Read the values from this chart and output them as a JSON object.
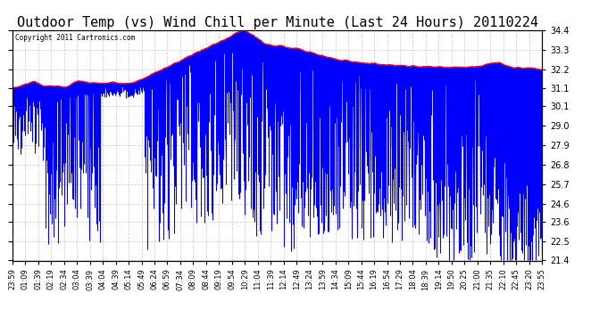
{
  "title": "Outdoor Temp (vs) Wind Chill per Minute (Last 24 Hours) 20110224",
  "copyright": "Copyright 2011 Cartronics.com",
  "ylim": [
    21.4,
    34.4
  ],
  "yticks": [
    21.4,
    22.5,
    23.6,
    24.6,
    25.7,
    26.8,
    27.9,
    29.0,
    30.1,
    31.1,
    32.2,
    33.3,
    34.4
  ],
  "x_labels": [
    "23:59",
    "01:09",
    "01:39",
    "02:19",
    "02:34",
    "03:04",
    "03:39",
    "04:04",
    "04:39",
    "05:14",
    "05:49",
    "06:24",
    "06:59",
    "07:34",
    "08:09",
    "08:44",
    "09:19",
    "09:54",
    "10:29",
    "11:04",
    "11:39",
    "12:14",
    "12:49",
    "13:24",
    "13:59",
    "14:34",
    "15:09",
    "15:44",
    "16:19",
    "16:54",
    "17:29",
    "18:04",
    "18:39",
    "19:14",
    "19:50",
    "20:25",
    "21:00",
    "21:35",
    "22:10",
    "22:45",
    "23:20",
    "23:55"
  ],
  "background_color": "#ffffff",
  "plot_bg_color": "#ffffff",
  "grid_color": "#bbbbbb",
  "title_fontsize": 11,
  "bar_color": "#0000ff",
  "line_color": "#ff0000",
  "figsize": [
    6.9,
    3.75
  ],
  "dpi": 100,
  "n_points": 1440,
  "seed": 99
}
